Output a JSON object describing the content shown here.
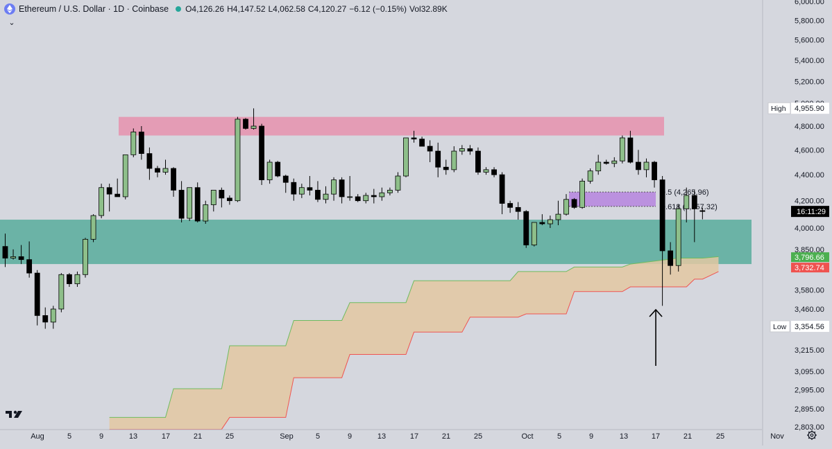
{
  "header": {
    "title": "Ethereum / U.S. Dollar · 1D · Coinbase",
    "open": "O4,126.26",
    "high": "H4,147.52",
    "low": "L4,062.58",
    "close": "C4,120.27",
    "change": "−6.12 (−0.15%)",
    "volume": "Vol32.89K",
    "logo_icon": "ethereum-icon",
    "status_color": "#26a69a"
  },
  "price_axis": {
    "tick_labels": [
      "6,000.00",
      "5,800.00",
      "5,600.00",
      "5,400.00",
      "5,200.00",
      "5,000.00",
      "4,800.00",
      "4,600.00",
      "4,400.00",
      "4,200.00",
      "4,000.00",
      "3,850.00",
      "3,580.00",
      "3,460.00",
      "3,215.00",
      "3,095.00",
      "2,995.00",
      "2,895.00",
      "2,803.00"
    ],
    "high_label": "High",
    "high_value": "4,955.90",
    "low_label": "Low",
    "low_value": "3,354.56",
    "countdown": "16:11:29",
    "green_tag": "3,796.66",
    "red_tag": "3,732.74"
  },
  "time_axis": {
    "labels": [
      "Aug",
      "5",
      "9",
      "13",
      "17",
      "21",
      "25",
      "Sep",
      "5",
      "9",
      "13",
      "17",
      "21",
      "25",
      "Oct",
      "5",
      "9",
      "13",
      "17",
      "21",
      "25",
      "Nov"
    ],
    "settings_icon": "gear-icon"
  },
  "fib": {
    "label_05": "0.5 (4,265.96)",
    "label_0618": "0.618 (4,157.32)"
  },
  "branding": {
    "logo_icon": "tradingview-logo-icon",
    "logo_text": "TV"
  },
  "chart_data": {
    "type": "candlestick",
    "title": "Ethereum / U.S. Dollar · 1D · Coinbase",
    "y_scale": "logarithmic",
    "ylim": [
      2790,
      6050
    ],
    "colors": {
      "up": "#8ebf8a",
      "down": "#000000",
      "resistance_zone": "#e49cb5",
      "support_zone": "#6bb3a6",
      "fib_zone": "#b889df",
      "cloud": "#e3c8a2",
      "cloud_upper": "#6dbb5e",
      "cloud_lower": "#ef5350"
    },
    "candles": [
      {
        "date": "Aug 1",
        "o": 3870,
        "h": 3960,
        "l": 3730,
        "c": 3790
      },
      {
        "date": "Aug 2",
        "o": 3790,
        "h": 3850,
        "l": 3780,
        "c": 3800
      },
      {
        "date": "Aug 3",
        "o": 3800,
        "h": 3880,
        "l": 3750,
        "c": 3780
      },
      {
        "date": "Aug 4",
        "o": 3780,
        "h": 3905,
        "l": 3660,
        "c": 3690
      },
      {
        "date": "Aug 5",
        "o": 3690,
        "h": 3710,
        "l": 3360,
        "c": 3420
      },
      {
        "date": "Aug 6",
        "o": 3420,
        "h": 3470,
        "l": 3340,
        "c": 3380
      },
      {
        "date": "Aug 7",
        "o": 3380,
        "h": 3480,
        "l": 3340,
        "c": 3460
      },
      {
        "date": "Aug 8",
        "o": 3460,
        "h": 3690,
        "l": 3440,
        "c": 3680
      },
      {
        "date": "Aug 9",
        "o": 3680,
        "h": 3690,
        "l": 3600,
        "c": 3620
      },
      {
        "date": "Aug 10",
        "o": 3620,
        "h": 3700,
        "l": 3600,
        "c": 3680
      },
      {
        "date": "Aug 11",
        "o": 3680,
        "h": 3930,
        "l": 3660,
        "c": 3920
      },
      {
        "date": "Aug 12",
        "o": 3920,
        "h": 4100,
        "l": 3900,
        "c": 4090
      },
      {
        "date": "Aug 13",
        "o": 4090,
        "h": 4330,
        "l": 4070,
        "c": 4300
      },
      {
        "date": "Aug 14",
        "o": 4300,
        "h": 4330,
        "l": 4120,
        "c": 4250
      },
      {
        "date": "Aug 15",
        "o": 4250,
        "h": 4370,
        "l": 4230,
        "c": 4230
      },
      {
        "date": "Aug 16",
        "o": 4230,
        "h": 4550,
        "l": 4210,
        "c": 4560
      },
      {
        "date": "Aug 17",
        "o": 4560,
        "h": 4780,
        "l": 4540,
        "c": 4750
      },
      {
        "date": "Aug 18",
        "o": 4750,
        "h": 4800,
        "l": 4520,
        "c": 4570
      },
      {
        "date": "Aug 19",
        "o": 4570,
        "h": 4620,
        "l": 4360,
        "c": 4450
      },
      {
        "date": "Aug 20",
        "o": 4450,
        "h": 4470,
        "l": 4380,
        "c": 4420
      },
      {
        "date": "Aug 21",
        "o": 4420,
        "h": 4520,
        "l": 4400,
        "c": 4450
      },
      {
        "date": "Aug 22",
        "o": 4450,
        "h": 4460,
        "l": 4230,
        "c": 4280
      },
      {
        "date": "Aug 23",
        "o": 4280,
        "h": 4350,
        "l": 4040,
        "c": 4070
      },
      {
        "date": "Aug 24",
        "o": 4070,
        "h": 4300,
        "l": 4050,
        "c": 4300
      },
      {
        "date": "Aug 25",
        "o": 4300,
        "h": 4340,
        "l": 4040,
        "c": 4050
      },
      {
        "date": "Aug 26",
        "o": 4050,
        "h": 4200,
        "l": 4030,
        "c": 4170
      },
      {
        "date": "Aug 27",
        "o": 4170,
        "h": 4280,
        "l": 4120,
        "c": 4280
      },
      {
        "date": "Aug 28",
        "o": 4280,
        "h": 4300,
        "l": 4150,
        "c": 4220
      },
      {
        "date": "Aug 29",
        "o": 4220,
        "h": 4240,
        "l": 4170,
        "c": 4200
      },
      {
        "date": "Aug 30",
        "o": 4200,
        "h": 4880,
        "l": 4190,
        "c": 4860
      },
      {
        "date": "Aug 31",
        "o": 4860,
        "h": 4870,
        "l": 4770,
        "c": 4780
      },
      {
        "date": "Sep 1",
        "o": 4780,
        "h": 4955,
        "l": 4770,
        "c": 4800
      },
      {
        "date": "Sep 2",
        "o": 4800,
        "h": 4820,
        "l": 4320,
        "c": 4360
      },
      {
        "date": "Sep 3",
        "o": 4360,
        "h": 4520,
        "l": 4330,
        "c": 4500
      },
      {
        "date": "Sep 4",
        "o": 4500,
        "h": 4510,
        "l": 4380,
        "c": 4390
      },
      {
        "date": "Sep 5",
        "o": 4390,
        "h": 4400,
        "l": 4260,
        "c": 4340
      },
      {
        "date": "Sep 6",
        "o": 4340,
        "h": 4370,
        "l": 4200,
        "c": 4250
      },
      {
        "date": "Sep 7",
        "o": 4250,
        "h": 4330,
        "l": 4220,
        "c": 4300
      },
      {
        "date": "Sep 8",
        "o": 4300,
        "h": 4390,
        "l": 4240,
        "c": 4280
      },
      {
        "date": "Sep 9",
        "o": 4280,
        "h": 4350,
        "l": 4190,
        "c": 4210
      },
      {
        "date": "Sep 10",
        "o": 4210,
        "h": 4310,
        "l": 4180,
        "c": 4250
      },
      {
        "date": "Sep 11",
        "o": 4250,
        "h": 4380,
        "l": 4200,
        "c": 4360
      },
      {
        "date": "Sep 12",
        "o": 4360,
        "h": 4380,
        "l": 4180,
        "c": 4230
      },
      {
        "date": "Sep 13",
        "o": 4230,
        "h": 4390,
        "l": 4200,
        "c": 4230
      },
      {
        "date": "Sep 14",
        "o": 4230,
        "h": 4250,
        "l": 4190,
        "c": 4200
      },
      {
        "date": "Sep 15",
        "o": 4200,
        "h": 4260,
        "l": 4180,
        "c": 4240
      },
      {
        "date": "Sep 16",
        "o": 4240,
        "h": 4290,
        "l": 4180,
        "c": 4230
      },
      {
        "date": "Sep 17",
        "o": 4230,
        "h": 4300,
        "l": 4200,
        "c": 4260
      },
      {
        "date": "Sep 18",
        "o": 4260,
        "h": 4300,
        "l": 4240,
        "c": 4280
      },
      {
        "date": "Sep 19",
        "o": 4280,
        "h": 4420,
        "l": 4260,
        "c": 4390
      },
      {
        "date": "Sep 20",
        "o": 4390,
        "h": 4700,
        "l": 4380,
        "c": 4700
      },
      {
        "date": "Sep 21",
        "o": 4700,
        "h": 4760,
        "l": 4660,
        "c": 4690
      },
      {
        "date": "Sep 22",
        "o": 4690,
        "h": 4710,
        "l": 4630,
        "c": 4630
      },
      {
        "date": "Sep 23",
        "o": 4630,
        "h": 4680,
        "l": 4500,
        "c": 4590
      },
      {
        "date": "Sep 24",
        "o": 4590,
        "h": 4660,
        "l": 4380,
        "c": 4460
      },
      {
        "date": "Sep 25",
        "o": 4460,
        "h": 4520,
        "l": 4400,
        "c": 4440
      },
      {
        "date": "Sep 26",
        "o": 4440,
        "h": 4630,
        "l": 4420,
        "c": 4590
      },
      {
        "date": "Sep 27",
        "o": 4590,
        "h": 4640,
        "l": 4560,
        "c": 4610
      },
      {
        "date": "Sep 28",
        "o": 4610,
        "h": 4640,
        "l": 4560,
        "c": 4590
      },
      {
        "date": "Sep 29",
        "o": 4590,
        "h": 4620,
        "l": 4400,
        "c": 4420
      },
      {
        "date": "Sep 30",
        "o": 4420,
        "h": 4460,
        "l": 4400,
        "c": 4440
      },
      {
        "date": "Oct 1",
        "o": 4440,
        "h": 4460,
        "l": 4380,
        "c": 4400
      },
      {
        "date": "Oct 2",
        "o": 4400,
        "h": 4420,
        "l": 4100,
        "c": 4180
      },
      {
        "date": "Oct 3",
        "o": 4180,
        "h": 4200,
        "l": 4110,
        "c": 4150
      },
      {
        "date": "Oct 4",
        "o": 4150,
        "h": 4190,
        "l": 4060,
        "c": 4120
      },
      {
        "date": "Oct 5",
        "o": 4120,
        "h": 4130,
        "l": 3860,
        "c": 3880
      },
      {
        "date": "Oct 6",
        "o": 3880,
        "h": 4040,
        "l": 3870,
        "c": 4040
      },
      {
        "date": "Oct 7",
        "o": 4040,
        "h": 4100,
        "l": 4020,
        "c": 4030
      },
      {
        "date": "Oct 8",
        "o": 4030,
        "h": 4090,
        "l": 4000,
        "c": 4060
      },
      {
        "date": "Oct 9",
        "o": 4060,
        "h": 4200,
        "l": 4020,
        "c": 4100
      },
      {
        "date": "Oct 10",
        "o": 4100,
        "h": 4250,
        "l": 4090,
        "c": 4210
      },
      {
        "date": "Oct 11",
        "o": 4210,
        "h": 4220,
        "l": 4140,
        "c": 4150
      },
      {
        "date": "Oct 12",
        "o": 4150,
        "h": 4370,
        "l": 4140,
        "c": 4350
      },
      {
        "date": "Oct 13",
        "o": 4350,
        "h": 4450,
        "l": 4330,
        "c": 4430
      },
      {
        "date": "Oct 14",
        "o": 4430,
        "h": 4560,
        "l": 4400,
        "c": 4500
      },
      {
        "date": "Oct 15",
        "o": 4500,
        "h": 4520,
        "l": 4480,
        "c": 4490
      },
      {
        "date": "Oct 16",
        "o": 4490,
        "h": 4540,
        "l": 4460,
        "c": 4510
      },
      {
        "date": "Oct 17",
        "o": 4510,
        "h": 4720,
        "l": 4490,
        "c": 4700
      },
      {
        "date": "Oct 18",
        "o": 4700,
        "h": 4760,
        "l": 4490,
        "c": 4500
      },
      {
        "date": "Oct 19",
        "o": 4500,
        "h": 4600,
        "l": 4400,
        "c": 4440
      },
      {
        "date": "Oct 20",
        "o": 4440,
        "h": 4530,
        "l": 4380,
        "c": 4500
      },
      {
        "date": "Oct 21",
        "o": 4500,
        "h": 4510,
        "l": 4300,
        "c": 4360
      },
      {
        "date": "Oct 22",
        "o": 4360,
        "h": 4390,
        "l": 3480,
        "c": 3840
      },
      {
        "date": "Oct 23",
        "o": 3840,
        "h": 3900,
        "l": 3680,
        "c": 3740
      },
      {
        "date": "Oct 24",
        "o": 3740,
        "h": 4170,
        "l": 3700,
        "c": 4140
      },
      {
        "date": "Oct 25",
        "o": 4140,
        "h": 4300,
        "l": 4040,
        "c": 4240
      },
      {
        "date": "Oct 26",
        "o": 4240,
        "h": 4280,
        "l": 3900,
        "c": 4140
      },
      {
        "date": "Oct 27",
        "o": 4126.26,
        "h": 4147.52,
        "l": 4062.58,
        "c": 4120.27
      }
    ],
    "zones": {
      "resistance": {
        "from": 4720,
        "to": 4880
      },
      "support": {
        "from": 3750,
        "to": 4060
      },
      "fib_band": {
        "from": 4157.32,
        "to": 4265.96
      }
    },
    "fib_levels": [
      {
        "ratio": "0.5",
        "price": 4265.96
      },
      {
        "ratio": "0.618",
        "price": 4157.32
      }
    ],
    "cloud_upper": [
      [
        13,
        2850
      ],
      [
        20,
        2850
      ],
      [
        21,
        3000
      ],
      [
        27,
        3000
      ],
      [
        28,
        3240
      ],
      [
        35,
        3240
      ],
      [
        36,
        3390
      ],
      [
        42,
        3390
      ],
      [
        43,
        3500
      ],
      [
        50,
        3500
      ],
      [
        51,
        3640
      ],
      [
        57,
        3640
      ],
      [
        58,
        3640
      ],
      [
        63,
        3640
      ],
      [
        64,
        3700
      ],
      [
        70,
        3700
      ],
      [
        71,
        3730
      ],
      [
        77,
        3730
      ],
      [
        78,
        3750
      ],
      [
        84,
        3790
      ],
      [
        87,
        3790
      ],
      [
        89,
        3800
      ]
    ],
    "cloud_lower": [
      [
        13,
        2790
      ],
      [
        27,
        2790
      ],
      [
        28,
        2850
      ],
      [
        35,
        2850
      ],
      [
        36,
        3060
      ],
      [
        42,
        3060
      ],
      [
        43,
        3190
      ],
      [
        50,
        3190
      ],
      [
        51,
        3320
      ],
      [
        57,
        3320
      ],
      [
        58,
        3410
      ],
      [
        64,
        3410
      ],
      [
        65,
        3430
      ],
      [
        70,
        3430
      ],
      [
        71,
        3570
      ],
      [
        77,
        3570
      ],
      [
        78,
        3600
      ],
      [
        85,
        3600
      ],
      [
        86,
        3650
      ],
      [
        87,
        3650
      ],
      [
        89,
        3700
      ]
    ]
  }
}
